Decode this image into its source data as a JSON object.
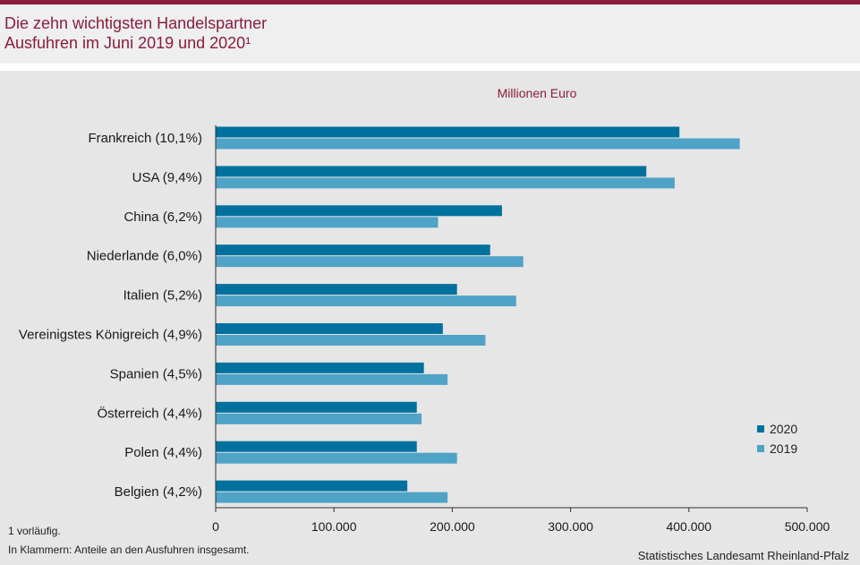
{
  "header": {
    "title_line1": "Die zehn wichtigsten Handelspartner",
    "title_line2": "Ausfuhren im Juni 2019 und 2020¹"
  },
  "chart_data": {
    "type": "bar",
    "orientation": "horizontal",
    "unit_label": "Millionen  Euro",
    "categories": [
      "Frankreich (10,1%)",
      "USA (9,4%)",
      "China (6,2%)",
      "Niederlande (6,0%)",
      "Italien (5,2%)",
      "Vereinigstes Königreich (4,9%)",
      "Spanien (4,5%)",
      "Österreich (4,4%)",
      "Polen (4,4%)",
      "Belgien (4,2%)"
    ],
    "series": [
      {
        "name": "2020",
        "color": "#00719e",
        "values": [
          392000,
          364000,
          242000,
          232000,
          204000,
          192000,
          176000,
          170000,
          170000,
          162000
        ]
      },
      {
        "name": "2019",
        "color": "#4fa3c6",
        "values": [
          443000,
          388000,
          188000,
          260000,
          254000,
          228000,
          196000,
          174000,
          204000,
          196000
        ]
      }
    ],
    "xlim": [
      0,
      500000
    ],
    "xticks": [
      0,
      100000,
      200000,
      300000,
      400000,
      500000
    ],
    "xtick_labels": [
      "0",
      "100.000",
      "200.000",
      "300.000",
      "400.000",
      "500.000"
    ],
    "grid": false,
    "legend_position": "bottom-right"
  },
  "footnotes": {
    "note1": "1 vorläufig.",
    "note2": "In Klammern: Anteile an den Ausfuhren insgesamt."
  },
  "source": "Statistisches Landesamt Rheinland-Pfalz"
}
